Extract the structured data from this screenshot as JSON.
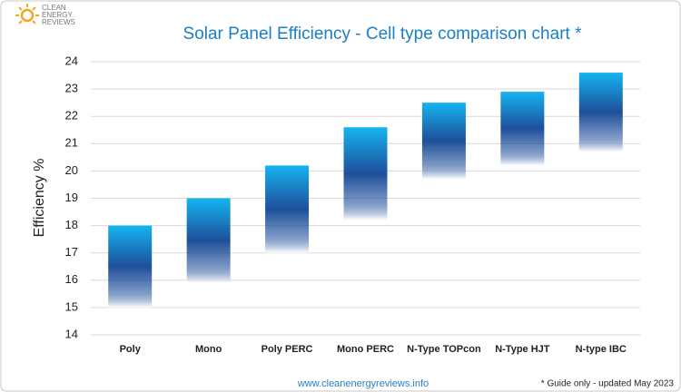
{
  "chart_data": {
    "type": "range-bar",
    "title": "Solar Panel Efficiency - Cell type comparison chart *",
    "y_label": "Efficiency %",
    "logo": [
      "CLEAN",
      "ENERGY",
      "REVIEWS"
    ],
    "source": "www.cleanenergyreviews.info",
    "note": "* Guide only - updated May 2023",
    "categories": [
      "Poly",
      "Mono",
      "Poly PERC",
      "Mono PERC",
      "N-Type TOPcon",
      "N-Type HJT",
      "N-type IBC"
    ],
    "low": [
      15.0,
      15.9,
      17.0,
      18.2,
      19.7,
      20.2,
      20.7
    ],
    "high": [
      18.0,
      19.0,
      20.2,
      21.6,
      22.5,
      22.9,
      23.6
    ],
    "colors": [
      "#14b4f0",
      "#1e4f9a",
      "#ffffff"
    ],
    "ylim": [
      14,
      24
    ],
    "yticks": [
      14,
      15,
      16,
      17,
      18,
      19,
      20,
      21,
      22,
      23,
      24
    ],
    "grid": true
  }
}
